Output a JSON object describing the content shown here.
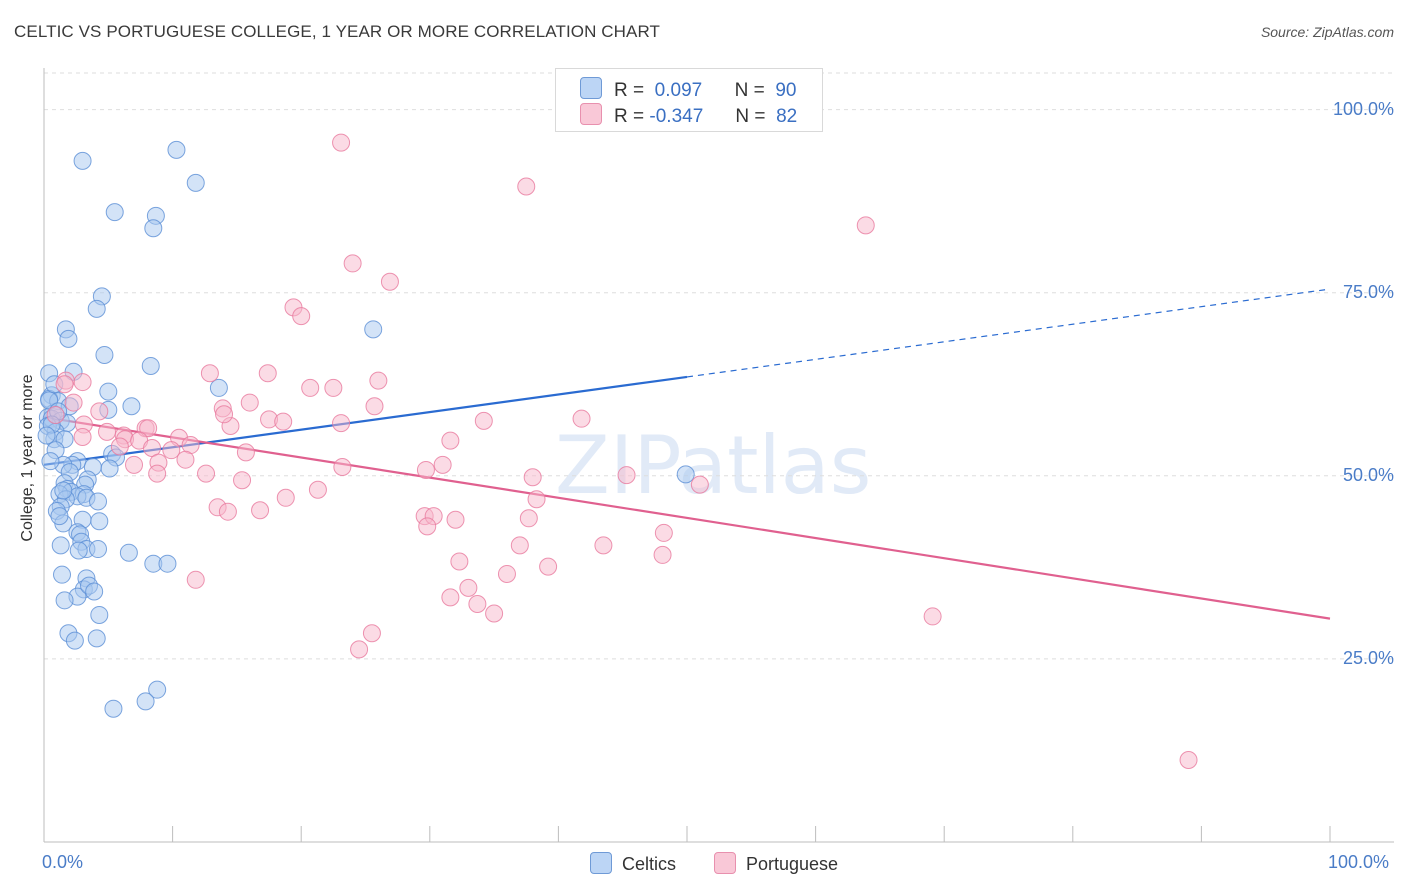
{
  "header": {
    "title": "CELTIC VS PORTUGUESE COLLEGE, 1 YEAR OR MORE CORRELATION CHART",
    "source": "Source: ZipAtlas.com"
  },
  "watermark": {
    "zip": "ZIP",
    "atlas": "atlas"
  },
  "legend": {
    "rows": [
      {
        "r_label": "R =",
        "r_value": "0.097",
        "n_label": "N =",
        "n_value": "90"
      },
      {
        "r_label": "R =",
        "r_value": "-0.347",
        "n_label": "N =",
        "n_value": "82"
      }
    ],
    "bottom": [
      "Celtics",
      "Portuguese"
    ]
  },
  "colors": {
    "celtics_fill": "#a8c8f0",
    "celtics_stroke": "#5b8fd6",
    "celtics_line": "#2a6bd1",
    "portuguese_fill": "#f7b8cc",
    "portuguese_stroke": "#e8799d",
    "portuguese_line": "#e0608f",
    "tick_text": "#4a7cc7",
    "grid": "#dedede"
  },
  "chart_data": {
    "type": "scatter",
    "title": "CELTIC VS PORTUGUESE COLLEGE, 1 YEAR OR MORE CORRELATION CHART",
    "xlabel": "",
    "ylabel": "College, 1 year or more",
    "xlim": [
      0,
      100
    ],
    "ylim": [
      0,
      105
    ],
    "x_tick_labels": {
      "0": "0.0%",
      "100": "100.0%"
    },
    "y_ticks": [
      25,
      50,
      75,
      100
    ],
    "y_tick_labels": [
      "25.0%",
      "50.0%",
      "75.0%",
      "100.0%"
    ],
    "grid": true,
    "legend_position": "top-center",
    "series": [
      {
        "name": "Celtics",
        "r": 0.097,
        "n": 90,
        "trend": {
          "x0": 0,
          "y0": 51.5,
          "x1": 50,
          "y1": 63.5,
          "x_dash_end": 100,
          "y_dash_end": 75.5
        },
        "points": [
          [
            3.0,
            93
          ],
          [
            10.3,
            94.5
          ],
          [
            11.8,
            90
          ],
          [
            5.5,
            86
          ],
          [
            8.7,
            85.5
          ],
          [
            8.5,
            83.8
          ],
          [
            4.5,
            74.5
          ],
          [
            4.1,
            72.8
          ],
          [
            1.7,
            70
          ],
          [
            1.9,
            68.7
          ],
          [
            25.6,
            70
          ],
          [
            4.7,
            66.5
          ],
          [
            8.3,
            65
          ],
          [
            2.3,
            64.2
          ],
          [
            0.4,
            64
          ],
          [
            13.6,
            62
          ],
          [
            5.0,
            61.5
          ],
          [
            0.6,
            61
          ],
          [
            0.4,
            60.5
          ],
          [
            1.1,
            60.2
          ],
          [
            6.8,
            59.5
          ],
          [
            5.0,
            59
          ],
          [
            0.7,
            58.5
          ],
          [
            0.3,
            58
          ],
          [
            0.6,
            57.8
          ],
          [
            1.3,
            57.5
          ],
          [
            1.8,
            57.2
          ],
          [
            0.3,
            56.8
          ],
          [
            0.9,
            56
          ],
          [
            0.8,
            55
          ],
          [
            1.6,
            55
          ],
          [
            5.3,
            53
          ],
          [
            5.6,
            52.5
          ],
          [
            0.9,
            53.5
          ],
          [
            2.6,
            52
          ],
          [
            2.2,
            51.5
          ],
          [
            1.5,
            51.5
          ],
          [
            3.8,
            51.2
          ],
          [
            5.1,
            51
          ],
          [
            2.0,
            50.5
          ],
          [
            3.4,
            49.5
          ],
          [
            1.6,
            49
          ],
          [
            3.2,
            48.8
          ],
          [
            1.8,
            48.2
          ],
          [
            2.1,
            47.8
          ],
          [
            3.1,
            47.5
          ],
          [
            2.6,
            47.2
          ],
          [
            1.2,
            47.5
          ],
          [
            3.3,
            47
          ],
          [
            1.7,
            46.8
          ],
          [
            4.2,
            46.5
          ],
          [
            1.3,
            45.8
          ],
          [
            1.0,
            45.2
          ],
          [
            3.0,
            44
          ],
          [
            4.3,
            43.8
          ],
          [
            1.5,
            43.5
          ],
          [
            2.6,
            42.3
          ],
          [
            2.8,
            42
          ],
          [
            2.9,
            41
          ],
          [
            1.3,
            40.5
          ],
          [
            3.3,
            40
          ],
          [
            4.2,
            40
          ],
          [
            6.6,
            39.5
          ],
          [
            8.5,
            38
          ],
          [
            9.6,
            38
          ],
          [
            1.4,
            36.5
          ],
          [
            3.3,
            36
          ],
          [
            3.1,
            34.5
          ],
          [
            2.6,
            33.5
          ],
          [
            3.5,
            35
          ],
          [
            1.6,
            33
          ],
          [
            4.3,
            31
          ],
          [
            1.9,
            28.5
          ],
          [
            4.1,
            27.8
          ],
          [
            2.4,
            27.5
          ],
          [
            8.8,
            20.8
          ],
          [
            7.9,
            19.2
          ],
          [
            5.4,
            18.2
          ],
          [
            49.9,
            50.2
          ],
          [
            0.5,
            52
          ],
          [
            0.4,
            60.3
          ],
          [
            0.8,
            62.5
          ],
          [
            2.0,
            59.5
          ],
          [
            1.1,
            58.8
          ],
          [
            0.6,
            57
          ],
          [
            0.2,
            55.5
          ],
          [
            1.5,
            48
          ],
          [
            2.7,
            39.8
          ],
          [
            3.9,
            34.2
          ],
          [
            1.2,
            44.5
          ]
        ]
      },
      {
        "name": "Portuguese",
        "r": -0.347,
        "n": 82,
        "trend": {
          "x0": 0,
          "y0": 58,
          "x1": 100,
          "y1": 30.5
        },
        "points": [
          [
            23.1,
            95.5
          ],
          [
            37.5,
            89.5
          ],
          [
            63.9,
            84.2
          ],
          [
            24.0,
            79
          ],
          [
            26.9,
            76.5
          ],
          [
            19.4,
            73
          ],
          [
            20.0,
            71.8
          ],
          [
            1.7,
            63
          ],
          [
            3.0,
            62.8
          ],
          [
            12.9,
            64
          ],
          [
            17.4,
            64
          ],
          [
            26.0,
            63
          ],
          [
            20.7,
            62
          ],
          [
            22.5,
            62
          ],
          [
            2.3,
            60
          ],
          [
            16.0,
            60
          ],
          [
            13.9,
            59.2
          ],
          [
            25.7,
            59.5
          ],
          [
            0.9,
            58.3
          ],
          [
            4.3,
            58.8
          ],
          [
            17.5,
            57.7
          ],
          [
            18.6,
            57.4
          ],
          [
            23.1,
            57.2
          ],
          [
            34.2,
            57.5
          ],
          [
            41.8,
            57.8
          ],
          [
            3.1,
            57
          ],
          [
            14.5,
            56.8
          ],
          [
            7.9,
            56.5
          ],
          [
            8.1,
            56.5
          ],
          [
            4.9,
            56
          ],
          [
            6.2,
            55.5
          ],
          [
            3.0,
            55.3
          ],
          [
            6.3,
            55
          ],
          [
            7.4,
            54.8
          ],
          [
            10.5,
            55.2
          ],
          [
            11.4,
            54.2
          ],
          [
            31.6,
            54.8
          ],
          [
            5.9,
            54
          ],
          [
            8.4,
            53.8
          ],
          [
            9.9,
            53.5
          ],
          [
            15.7,
            53.2
          ],
          [
            11.0,
            52.2
          ],
          [
            8.9,
            51.8
          ],
          [
            7.0,
            51.5
          ],
          [
            29.7,
            50.8
          ],
          [
            31.0,
            51.5
          ],
          [
            23.2,
            51.2
          ],
          [
            12.6,
            50.3
          ],
          [
            8.8,
            50.3
          ],
          [
            15.4,
            49.4
          ],
          [
            38.0,
            49.8
          ],
          [
            45.3,
            50.1
          ],
          [
            51.0,
            48.8
          ],
          [
            21.3,
            48.1
          ],
          [
            18.8,
            47
          ],
          [
            38.3,
            46.8
          ],
          [
            13.5,
            45.7
          ],
          [
            14.3,
            45.1
          ],
          [
            16.8,
            45.3
          ],
          [
            29.6,
            44.5
          ],
          [
            30.3,
            44.5
          ],
          [
            32.0,
            44
          ],
          [
            29.8,
            43.1
          ],
          [
            37.7,
            44.2
          ],
          [
            48.2,
            42.2
          ],
          [
            37.0,
            40.5
          ],
          [
            43.5,
            40.5
          ],
          [
            48.1,
            39.2
          ],
          [
            32.3,
            38.3
          ],
          [
            39.2,
            37.6
          ],
          [
            36.0,
            36.6
          ],
          [
            11.8,
            35.8
          ],
          [
            33.0,
            34.7
          ],
          [
            31.6,
            33.4
          ],
          [
            33.7,
            32.5
          ],
          [
            35.0,
            31.2
          ],
          [
            69.1,
            30.8
          ],
          [
            25.5,
            28.5
          ],
          [
            24.5,
            26.3
          ],
          [
            89.0,
            11.2
          ],
          [
            14.0,
            58.4
          ],
          [
            1.6,
            62.5
          ]
        ]
      }
    ]
  }
}
